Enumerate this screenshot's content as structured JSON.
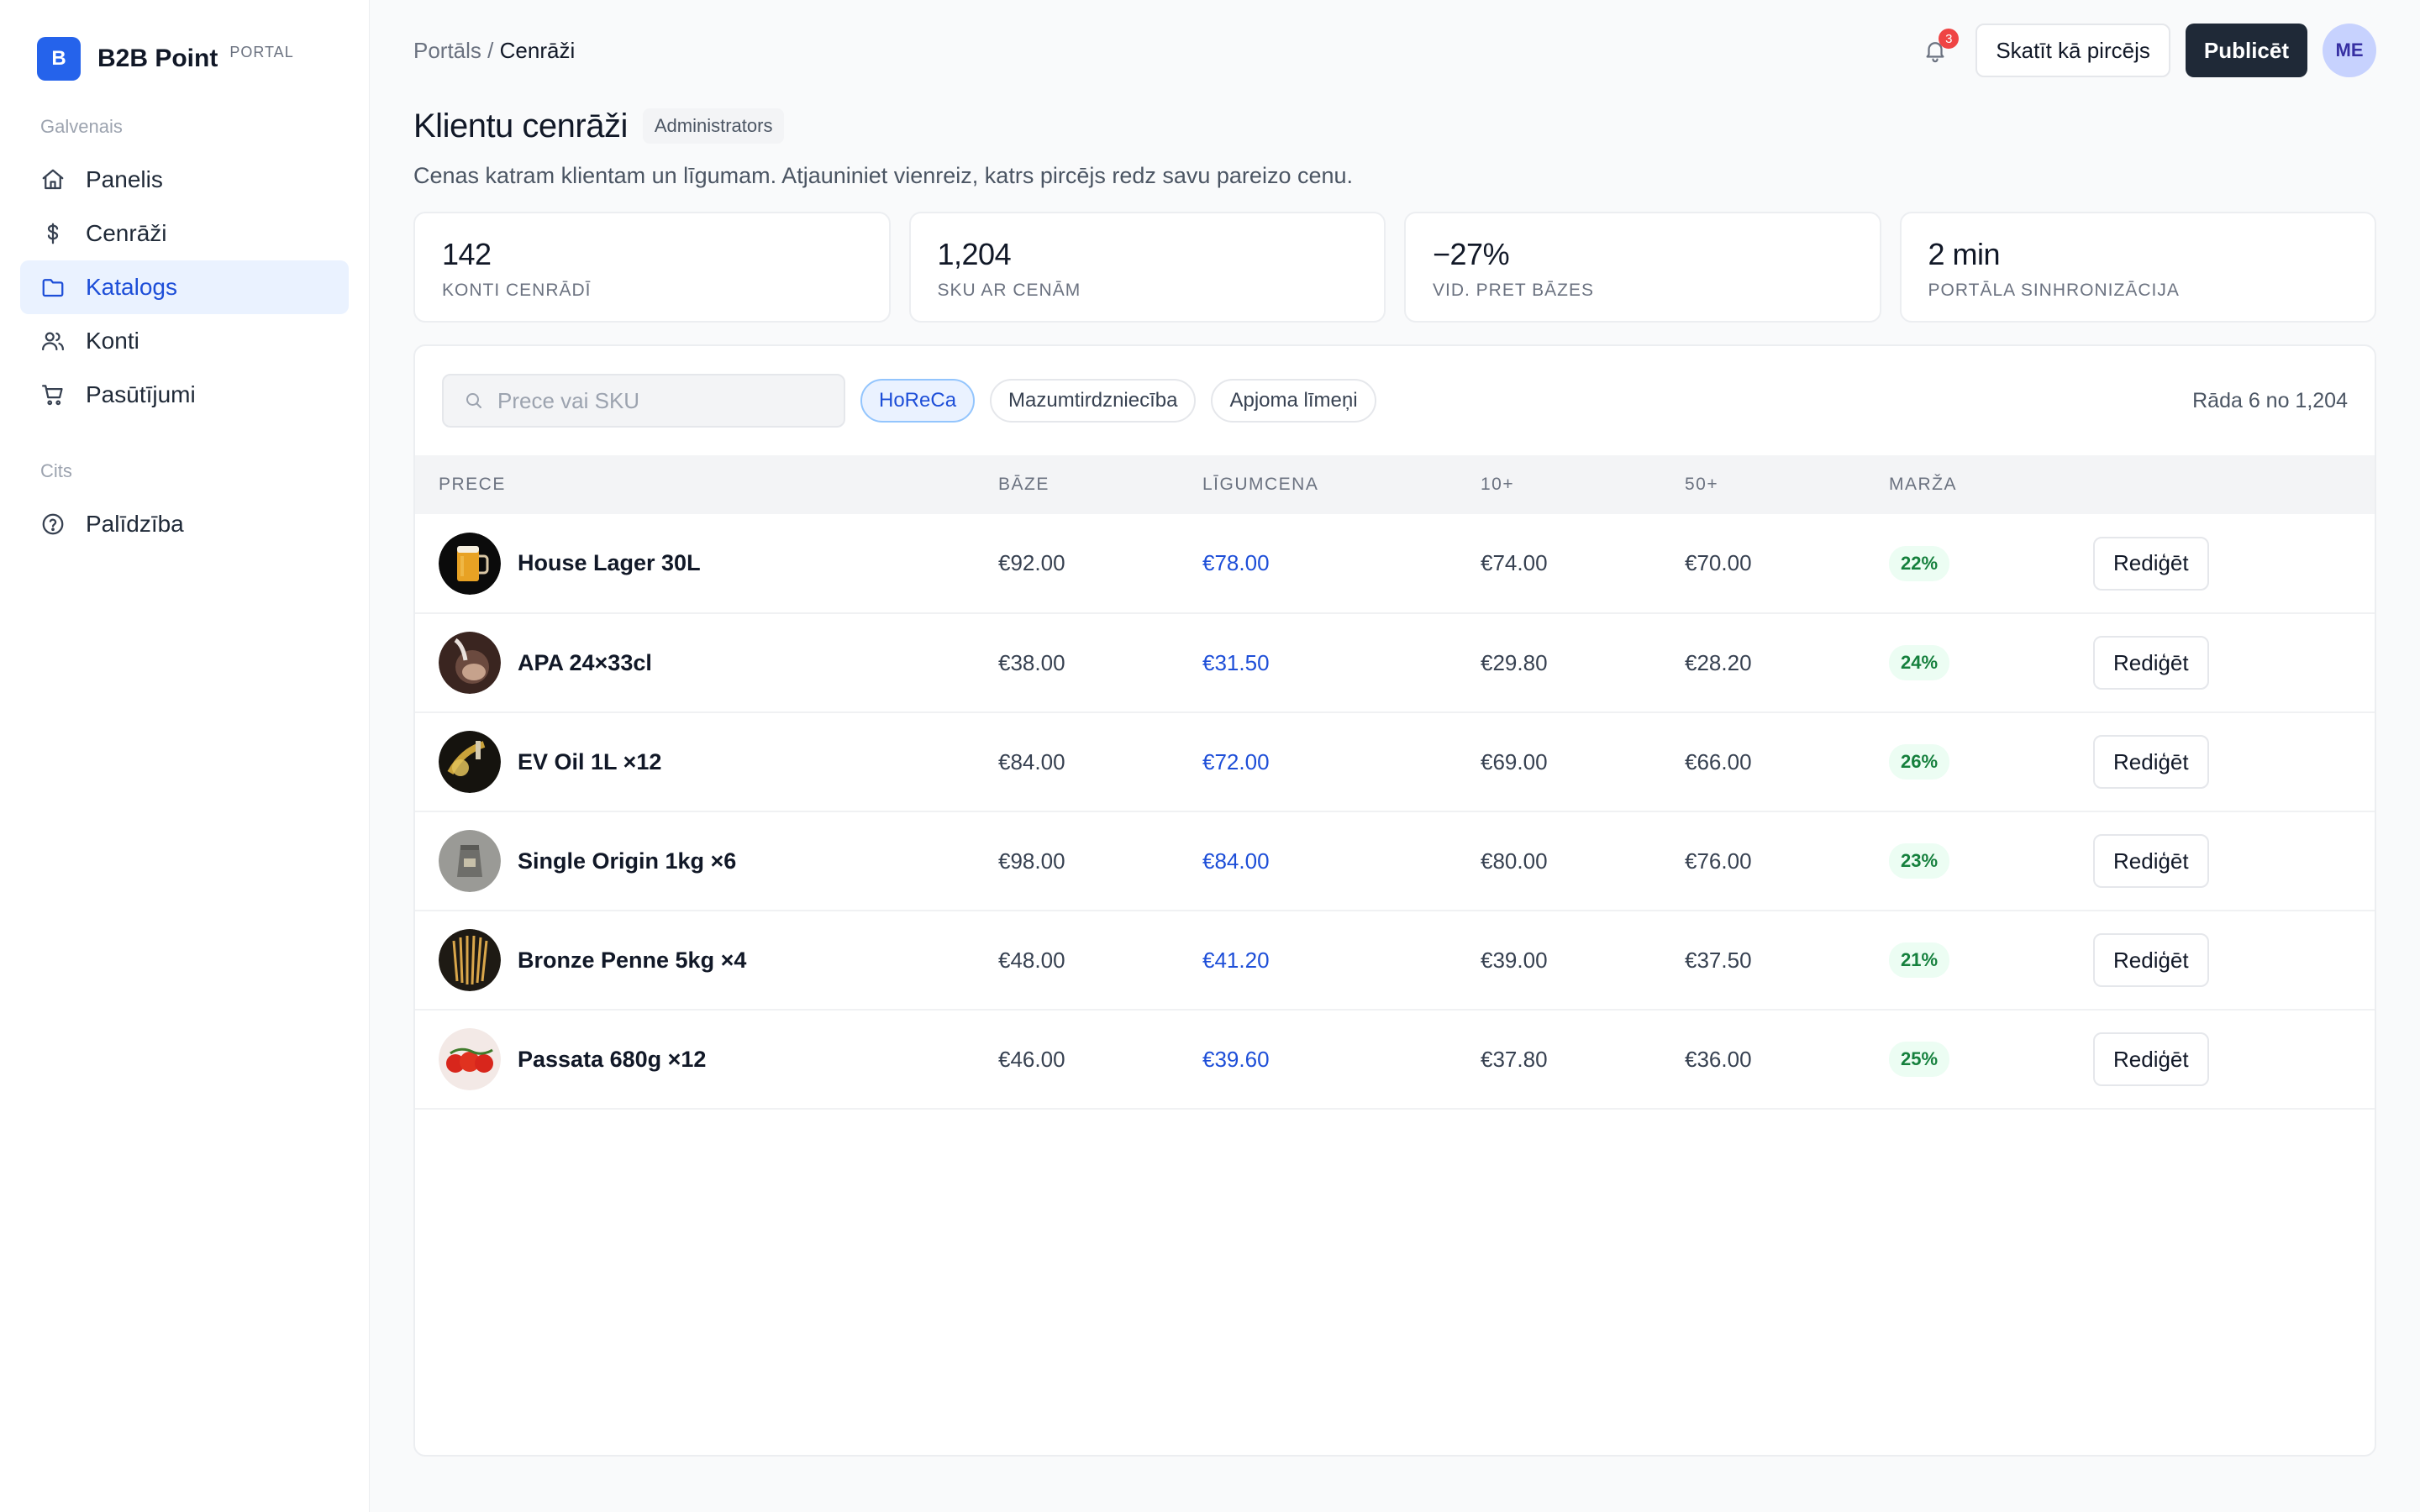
{
  "brand": {
    "logo_letter": "B",
    "name": "B2B Point",
    "tag": "PORTAL",
    "color": "#2563eb"
  },
  "sidebar": {
    "section_main": "Galvenais",
    "items": [
      {
        "label": "Panelis",
        "icon": "home-icon"
      },
      {
        "label": "Cenrāži",
        "icon": "dollar-icon"
      },
      {
        "label": "Katalogs",
        "icon": "folder-icon",
        "active": true
      },
      {
        "label": "Konti",
        "icon": "users-icon"
      },
      {
        "label": "Pasūtījumi",
        "icon": "cart-icon"
      }
    ],
    "section_other": "Cits",
    "other_items": [
      {
        "label": "Palīdzība",
        "icon": "help-icon"
      }
    ]
  },
  "header": {
    "breadcrumb_root": "Portāls",
    "breadcrumb_sep": "/",
    "breadcrumb_current": "Cenrāži",
    "notification_count": "3",
    "view_as_buyer": "Skatīt kā pircējs",
    "publish": "Publicēt",
    "avatar_initials": "ME"
  },
  "page": {
    "title": "Klientu cenrāži",
    "role": "Administrators",
    "subtitle": "Cenas katram klientam un līgumam. Atjauniniet vienreiz, katrs pircējs redz savu pareizo cenu."
  },
  "stats": [
    {
      "value": "142",
      "label": "Konti cenrādī"
    },
    {
      "value": "1,204",
      "label": "SKU ar cenām"
    },
    {
      "value": "−27%",
      "label": "Vid. pret bāzes"
    },
    {
      "value": "2 min",
      "label": "Portāla sinhronizācija"
    }
  ],
  "toolbar": {
    "search_placeholder": "Prece vai SKU",
    "filters": [
      {
        "label": "HoReCa",
        "active": true
      },
      {
        "label": "Mazumtirdzniecība",
        "active": false
      },
      {
        "label": "Apjoma līmeņi",
        "active": false
      }
    ],
    "showing": "Rāda 6 no 1,204"
  },
  "table": {
    "columns": [
      "Prece",
      "Bāze",
      "Līgumcena",
      "10+",
      "50+",
      "Marža",
      ""
    ],
    "edit_label": "Rediģēt",
    "rows": [
      {
        "name": "House Lager 30L",
        "base": "€92.00",
        "contract": "€78.00",
        "t10": "€74.00",
        "t50": "€70.00",
        "margin": "22%",
        "thumb": "beer-image"
      },
      {
        "name": "APA 24×33cl",
        "base": "€38.00",
        "contract": "€31.50",
        "t10": "€29.80",
        "t50": "€28.20",
        "margin": "24%",
        "thumb": "tap-image"
      },
      {
        "name": "EV Oil 1L ×12",
        "base": "€84.00",
        "contract": "€72.00",
        "t10": "€69.00",
        "t50": "€66.00",
        "margin": "26%",
        "thumb": "oil-image"
      },
      {
        "name": "Single Origin 1kg ×6",
        "base": "€98.00",
        "contract": "€84.00",
        "t10": "€80.00",
        "t50": "€76.00",
        "margin": "23%",
        "thumb": "coffee-bag-image"
      },
      {
        "name": "Bronze Penne 5kg ×4",
        "base": "€48.00",
        "contract": "€41.20",
        "t10": "€39.00",
        "t50": "€37.50",
        "margin": "21%",
        "thumb": "pasta-image"
      },
      {
        "name": "Passata 680g ×12",
        "base": "€46.00",
        "contract": "€39.60",
        "t10": "€37.80",
        "t50": "€36.00",
        "margin": "25%",
        "thumb": "tomato-image"
      }
    ]
  }
}
